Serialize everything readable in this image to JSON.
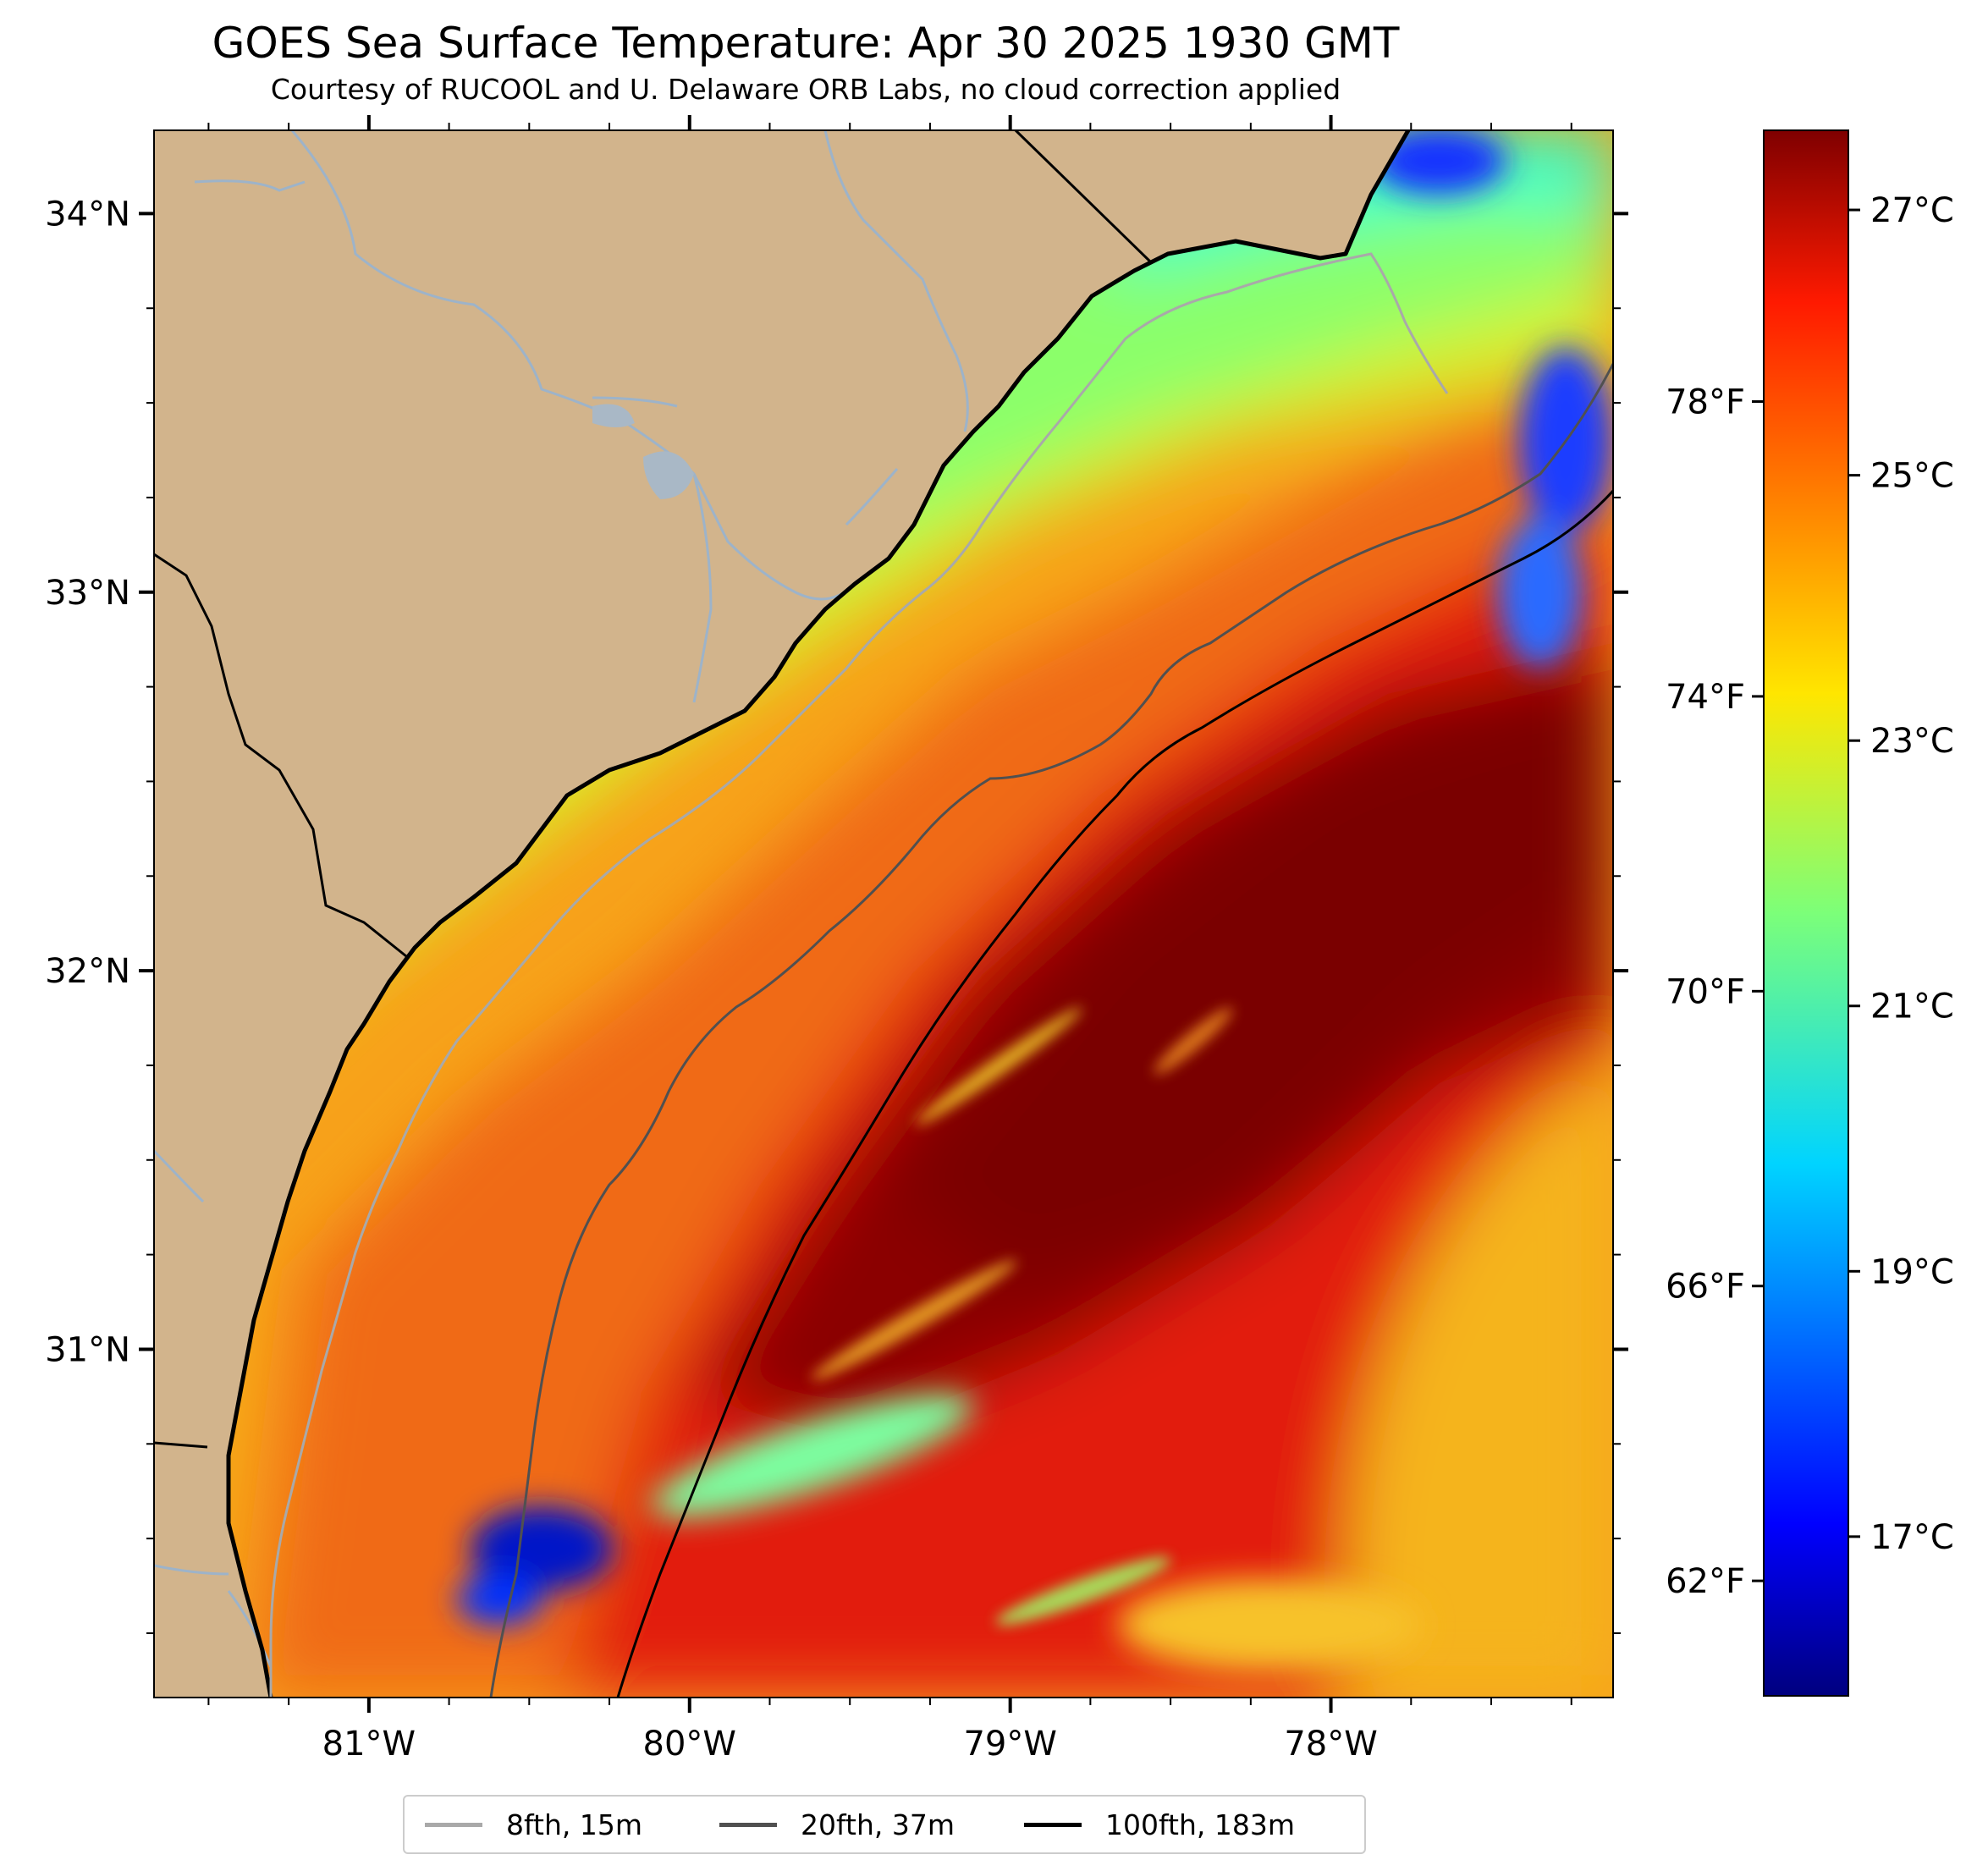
{
  "title": "GOES Sea Surface Temperature: Apr 30 2025 1930 GMT",
  "subtitle": "Courtesy of RUCOOL and U. Delaware ORB Labs, no cloud correction applied",
  "map": {
    "lon_range": [
      -81.67,
      -77.12
    ],
    "lat_range": [
      30.08,
      34.22
    ],
    "lon_ticks": [
      {
        "value": -81,
        "label": "81°W"
      },
      {
        "value": -80,
        "label": "80°W"
      },
      {
        "value": -79,
        "label": "79°W"
      },
      {
        "value": -78,
        "label": "78°W"
      }
    ],
    "lat_ticks": [
      {
        "value": 34,
        "label": "34°N"
      },
      {
        "value": 33,
        "label": "33°N"
      },
      {
        "value": 32,
        "label": "32°N"
      },
      {
        "value": 31,
        "label": "31°N"
      }
    ],
    "land_color": "#D2B48C",
    "coast_color": "#000000",
    "river_color": "#9DB3C9"
  },
  "colorbar": {
    "colormap": "jet",
    "range_c": [
      15.8,
      27.6
    ],
    "celsius_ticks": [
      {
        "value": 17,
        "label": "17°C"
      },
      {
        "value": 19,
        "label": "19°C"
      },
      {
        "value": 21,
        "label": "21°C"
      },
      {
        "value": 23,
        "label": "23°C"
      },
      {
        "value": 25,
        "label": "25°C"
      },
      {
        "value": 27,
        "label": "27°C"
      }
    ],
    "fahrenheit_ticks": [
      {
        "value": 62,
        "label": "62°F"
      },
      {
        "value": 66,
        "label": "66°F"
      },
      {
        "value": 70,
        "label": "70°F"
      },
      {
        "value": 74,
        "label": "74°F"
      },
      {
        "value": 78,
        "label": "78°F"
      }
    ]
  },
  "legend": [
    {
      "label": "8fth, 15m",
      "color": "#A9A9A9"
    },
    {
      "label": "20fth, 37m",
      "color": "#505050"
    },
    {
      "label": "100fth, 183m",
      "color": "#000000"
    }
  ]
}
